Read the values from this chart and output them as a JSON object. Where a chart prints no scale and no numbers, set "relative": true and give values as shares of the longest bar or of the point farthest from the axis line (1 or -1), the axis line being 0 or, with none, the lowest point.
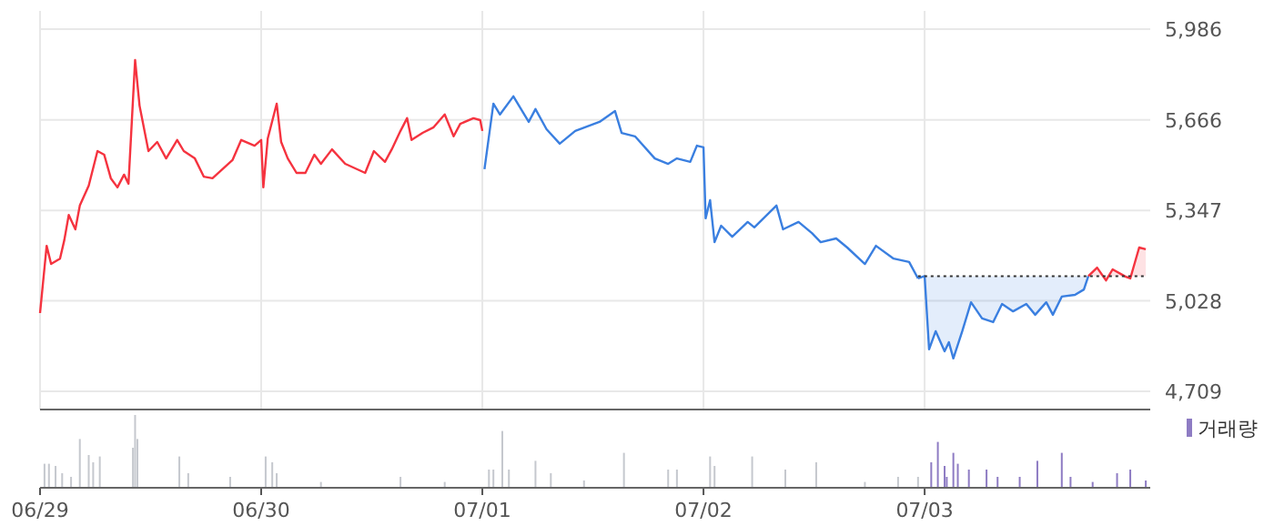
{
  "chart_data": [
    {
      "type": "line",
      "xlim": [
        "--06-29T00:00",
        "--07-04T00:29"
      ],
      "ylim": [
        4645,
        6050
      ],
      "yticks": [
        {
          "value": 4709,
          "label": "4,709"
        },
        {
          "value": 5028,
          "label": "5,028"
        },
        {
          "value": 5347,
          "label": "5,347"
        },
        {
          "value": 5666,
          "label": "5,666"
        },
        {
          "value": 5986,
          "label": "5,986"
        }
      ],
      "xticks": [
        "--06-29",
        "--06-30",
        "--07-01",
        "--07-02",
        "--07-03"
      ],
      "tick_labels": "y",
      "grid": true,
      "ref_lines": [
        {
          "axis": "y",
          "value": 5115,
          "color": "#333333",
          "line_style": "dotted"
        }
      ],
      "series": [
        {
          "type": "line",
          "color": "#f5333f",
          "x": [
            "--06-29T00:00",
            "--06-29T00:43",
            "--06-29T01:12",
            "--06-29T02:10",
            "--06-29T02:38",
            "--06-29T03:07",
            "--06-29T03:50",
            "--06-29T04:19",
            "--06-29T05:17",
            "--06-29T06:14",
            "--06-29T06:58",
            "--06-29T07:41",
            "--06-29T08:24",
            "--06-29T09:07",
            "--06-29T09:36",
            "--06-29T10:19",
            "--06-29T10:48",
            "--06-29T11:46",
            "--06-29T12:43",
            "--06-29T13:41",
            "--06-29T14:53",
            "--06-29T15:36",
            "--06-29T16:48",
            "--06-29T17:46",
            "--06-29T18:43",
            "--06-29T20:53",
            "--06-29T21:50",
            "--06-29T23:17",
            "--06-30T00:00",
            "--06-30T00:14",
            "--06-30T00:43",
            "--06-30T01:41",
            "--06-30T02:10",
            "--06-30T02:53",
            "--06-30T03:50",
            "--06-30T04:48",
            "--06-30T05:46",
            "--06-30T06:29",
            "--06-30T07:41",
            "--06-30T09:07",
            "--06-30T11:17",
            "--06-30T12:14",
            "--06-30T13:26",
            "--06-30T14:10",
            "--06-30T15:07",
            "--06-30T15:50",
            "--06-30T16:19",
            "--06-30T17:31",
            "--06-30T18:43",
            "--06-30T19:55",
            "--06-30T20:53",
            "--06-30T21:36",
            "--06-30T23:02",
            "--06-30T23:46",
            "--07-01T00:00"
          ],
          "values": [
            4985,
            5222,
            5158,
            5177,
            5242,
            5331,
            5280,
            5364,
            5434,
            5556,
            5543,
            5460,
            5428,
            5473,
            5441,
            5877,
            5716,
            5556,
            5588,
            5530,
            5595,
            5556,
            5530,
            5466,
            5460,
            5524,
            5595,
            5575,
            5595,
            5428,
            5601,
            5723,
            5588,
            5530,
            5479,
            5479,
            5543,
            5511,
            5562,
            5511,
            5479,
            5556,
            5518,
            5562,
            5627,
            5672,
            5595,
            5620,
            5640,
            5685,
            5608,
            5652,
            5672,
            5665,
            5627
          ]
        },
        {
          "type": "line",
          "color": "#3a7fe0",
          "x": [
            "--07-01T00:14",
            "--07-01T01:12",
            "--07-01T01:55",
            "--07-01T03:22",
            "--07-01T05:02",
            "--07-01T05:46",
            "--07-01T06:58",
            "--07-01T08:24",
            "--07-01T10:05",
            "--07-01T12:43",
            "--07-01T14:24",
            "--07-01T15:07",
            "--07-01T16:34",
            "--07-01T18:43",
            "--07-01T20:10",
            "--07-01T21:07",
            "--07-01T22:34",
            "--07-01T23:17",
            "--07-02T00:00",
            "--07-02T00:14",
            "--07-02T00:43",
            "--07-02T01:12",
            "--07-02T01:55",
            "--07-02T03:07",
            "--07-02T04:48",
            "--07-02T05:31",
            "--07-02T07:55",
            "--07-02T08:38",
            "--07-02T10:19",
            "--07-02T11:46",
            "--07-02T12:43",
            "--07-02T14:24",
            "--07-02T15:36",
            "--07-02T17:31",
            "--07-02T18:43",
            "--07-02T20:38",
            "--07-02T22:19",
            "--07-02T23:17"
          ],
          "values": [
            5492,
            5723,
            5685,
            5749,
            5659,
            5704,
            5633,
            5582,
            5627,
            5659,
            5697,
            5620,
            5608,
            5530,
            5511,
            5530,
            5518,
            5575,
            5569,
            5319,
            5383,
            5235,
            5293,
            5254,
            5306,
            5287,
            5364,
            5280,
            5306,
            5267,
            5235,
            5248,
            5216,
            5158,
            5222,
            5177,
            5165,
            5107
          ]
        },
        {
          "type": "area",
          "color": "#3a7fe0",
          "x": [
            "--07-02T23:17",
            "--07-03T00:00",
            "--07-03T00:29",
            "--07-03T01:12",
            "--07-03T02:10",
            "--07-03T02:38",
            "--07-03T03:07",
            "--07-03T04:05",
            "--07-03T05:02",
            "--07-03T06:14",
            "--07-03T07:26",
            "--07-03T08:24",
            "--07-03T09:36",
            "--07-03T11:02",
            "--07-03T12:00",
            "--07-03T13:12",
            "--07-03T13:55",
            "--07-03T14:53",
            "--07-03T16:19",
            "--07-03T17:17",
            "--07-03T17:46"
          ],
          "values": [
            5107,
            5115,
            4857,
            4921,
            4850,
            4882,
            4825,
            4921,
            5023,
            4966,
            4953,
            5017,
            4991,
            5017,
            4979,
            5023,
            4979,
            5043,
            5049,
            5068,
            5115
          ]
        },
        {
          "type": "area",
          "color": "#f5333f",
          "x": [
            "--07-03T17:46",
            "--07-03T18:43",
            "--07-03T19:41",
            "--07-03T20:24",
            "--07-03T21:50",
            "--07-03T22:19",
            "--07-03T23:17",
            "--07-04T00:00"
          ],
          "values": [
            5115,
            5145,
            5100,
            5139,
            5113,
            5107,
            5216,
            5210
          ]
        }
      ]
    },
    {
      "type": "bar",
      "relative": true,
      "xlim": [
        "--06-29T00:00",
        "--07-04T00:29"
      ],
      "xticks": [
        {
          "value": "--06-29",
          "label": "06/29"
        },
        {
          "value": "--06-30",
          "label": "06/30"
        },
        {
          "value": "--07-01",
          "label": "07/01"
        },
        {
          "value": "--07-02",
          "label": "07/02"
        },
        {
          "value": "--07-03",
          "label": "07/03"
        }
      ],
      "tick_labels": "x",
      "legend": "top right",
      "series": [
        {
          "color": "#c5c8ce",
          "x": [
            "--06-29T00:29",
            "--06-29T00:58",
            "--06-29T01:41",
            "--06-29T02:24",
            "--06-29T03:22",
            "--06-29T04:19",
            "--06-29T05:17",
            "--06-29T05:46",
            "--06-29T06:29",
            "--06-29T10:05",
            "--06-29T10:19",
            "--06-29T10:34",
            "--06-29T15:07",
            "--06-29T16:05",
            "--06-29T20:38",
            "--06-30T00:29",
            "--06-30T01:12",
            "--06-30T01:41",
            "--06-30T06:29",
            "--06-30T15:07",
            "--06-30T19:55",
            "--07-01T00:43",
            "--07-01T01:12",
            "--07-01T02:10",
            "--07-01T02:53",
            "--07-01T05:46",
            "--07-01T07:26",
            "--07-01T11:02",
            "--07-01T15:22",
            "--07-01T20:10",
            "--07-01T21:07",
            "--07-02T00:43",
            "--07-02T01:12",
            "--07-02T05:17",
            "--07-02T08:53",
            "--07-02T12:14",
            "--07-02T17:31",
            "--07-02T21:07",
            "--07-02T23:17"
          ],
          "values": [
            0.33,
            0.33,
            0.3,
            0.2,
            0.15,
            0.67,
            0.45,
            0.35,
            0.43,
            0.55,
            1,
            0.67,
            0.43,
            0.2,
            0.15,
            0.43,
            0.35,
            0.2,
            0.08,
            0.15,
            0.08,
            0.25,
            0.25,
            0.78,
            0.25,
            0.37,
            0.2,
            0.1,
            0.48,
            0.25,
            0.25,
            0.43,
            0.3,
            0.43,
            0.25,
            0.35,
            0.08,
            0.15,
            0.15
          ]
        },
        {
          "name": "거래량",
          "color": "#8e7cc3",
          "x": [
            "--07-03T00:43",
            "--07-03T01:26",
            "--07-03T02:10",
            "--07-03T02:24",
            "--07-03T03:07",
            "--07-03T03:36",
            "--07-03T04:48",
            "--07-03T06:43",
            "--07-03T07:55",
            "--07-03T10:19",
            "--07-03T12:14",
            "--07-03T14:53",
            "--07-03T15:50",
            "--07-03T18:14",
            "--07-03T20:53",
            "--07-03T22:19",
            "--07-04T00:00"
          ],
          "values": [
            0.35,
            0.63,
            0.3,
            0.15,
            0.48,
            0.33,
            0.25,
            0.25,
            0.15,
            0.15,
            0.37,
            0.48,
            0.15,
            0.08,
            0.2,
            0.25,
            0.1
          ]
        }
      ]
    }
  ]
}
